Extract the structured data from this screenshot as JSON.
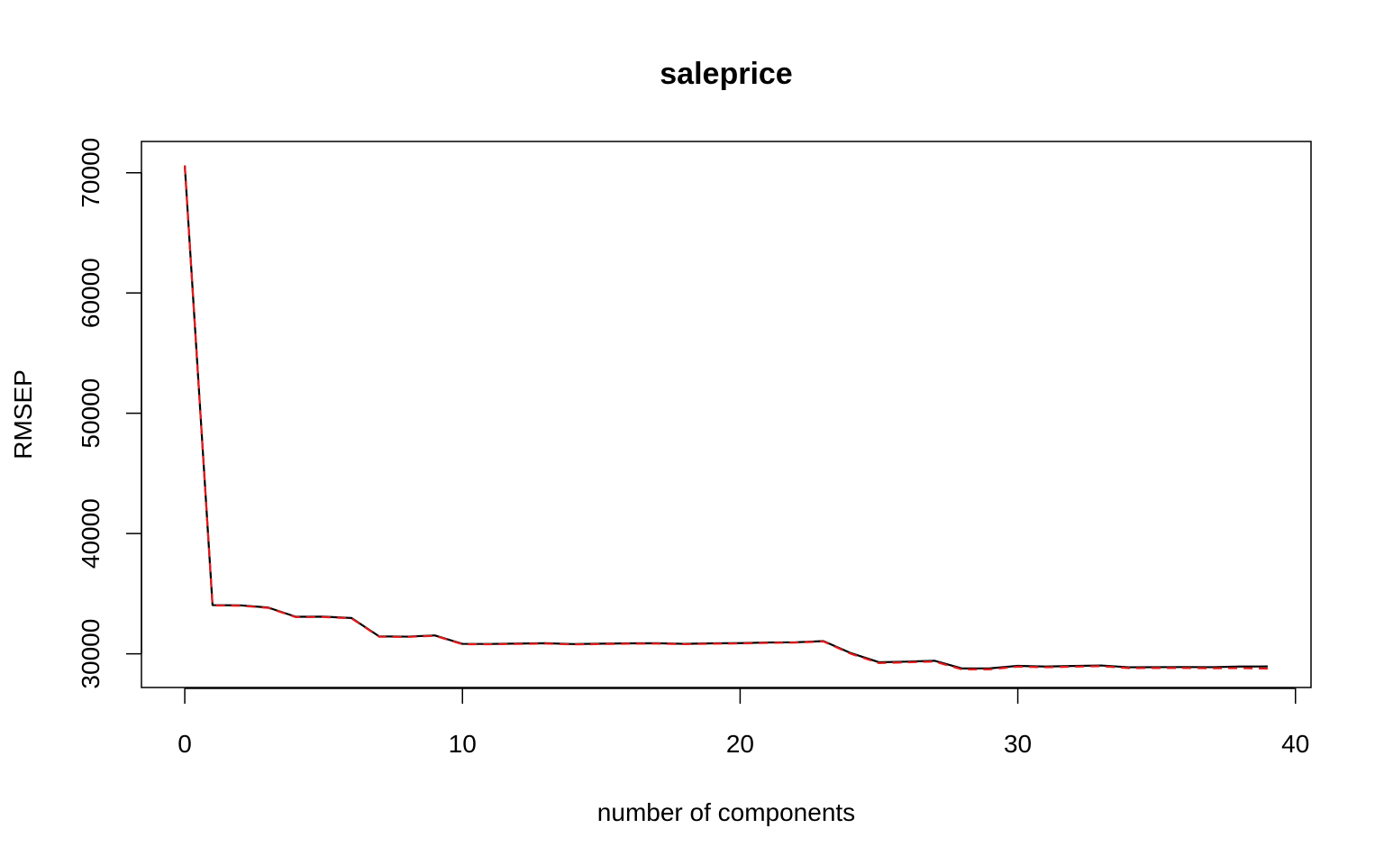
{
  "chart_data": {
    "type": "line",
    "title": "saleprice",
    "xlabel": "number of components",
    "ylabel": "RMSEP",
    "xlim": [
      -1.56,
      40.56
    ],
    "ylim": [
      27200,
      72600
    ],
    "x_ticks": [
      0,
      10,
      20,
      30,
      40
    ],
    "y_ticks": [
      30000,
      40000,
      50000,
      60000,
      70000
    ],
    "grid": false,
    "legend": "none",
    "x": [
      0,
      1,
      2,
      3,
      4,
      5,
      6,
      7,
      8,
      9,
      10,
      11,
      12,
      13,
      14,
      15,
      16,
      17,
      18,
      19,
      20,
      21,
      22,
      23,
      24,
      25,
      26,
      27,
      28,
      29,
      30,
      31,
      32,
      33,
      34,
      35,
      36,
      37,
      38,
      39
    ],
    "series": [
      {
        "color": "#000000",
        "line_style": "solid",
        "values": [
          70600,
          34050,
          34030,
          33850,
          33080,
          33090,
          32980,
          31450,
          31430,
          31530,
          30830,
          30820,
          30850,
          30880,
          30810,
          30840,
          30870,
          30880,
          30830,
          30870,
          30890,
          30940,
          30960,
          31060,
          30050,
          29300,
          29350,
          29420,
          28780,
          28790,
          29000,
          28940,
          28990,
          29030,
          28880,
          28890,
          28900,
          28890,
          28940,
          28950
        ]
      },
      {
        "color": "#e41a1c",
        "line_style": "dashed",
        "values": [
          70600,
          34020,
          34000,
          33820,
          33050,
          33060,
          32950,
          31420,
          31400,
          31500,
          30800,
          30790,
          30820,
          30850,
          30780,
          30810,
          30840,
          30850,
          30800,
          30840,
          30860,
          30910,
          30930,
          31030,
          29990,
          29230,
          29290,
          29360,
          28700,
          28710,
          28930,
          28880,
          28930,
          28970,
          28810,
          28820,
          28820,
          28800,
          28810,
          28770
        ]
      }
    ]
  }
}
